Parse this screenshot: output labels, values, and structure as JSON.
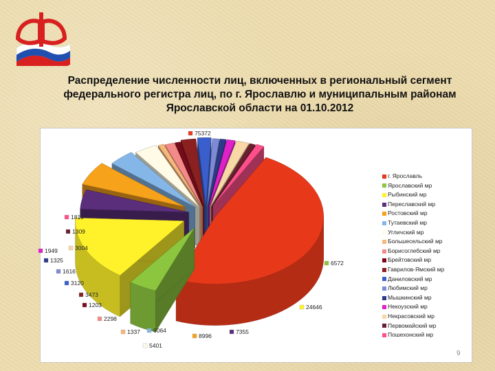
{
  "title": "Распределение численности лиц, включенных в региональный сегмент федерального регистра лиц, по г. Ярославлю и муниципальным районам Ярославской области на 01.10.2012",
  "page_number": "9",
  "logo": {
    "icon": "pfr-logo-icon",
    "flag_colors": [
      "#ffffff",
      "#1f4fb0",
      "#d7201f"
    ],
    "accent": "#d7201f"
  },
  "chart_data": {
    "type": "pie",
    "style": "3d-exploded",
    "legend_position": "right",
    "categories": [
      "г. Ярославль",
      "Ярославский мр",
      "Рыбинский мр",
      "Переславский мр",
      "Ростовский мр",
      "Тутаевский мр",
      "Угличский мр",
      "Большесельский мр",
      "Борисоглебский мр",
      "Брейтовский мр",
      "Гаврилов-Ямский мр",
      "Даниловский мр",
      "Любимский мр",
      "Мышкинский мр",
      "Некоузский мр",
      "Некрасовский мр",
      "Первомайский мр",
      "Пошехонский мр"
    ],
    "values": [
      75372,
      6572,
      24646,
      7355,
      8996,
      6064,
      5401,
      1337,
      2298,
      1203,
      3473,
      3120,
      1616,
      1325,
      1949,
      3004,
      1309,
      1819
    ],
    "colors": [
      "#e8381a",
      "#8cc63f",
      "#fff22a",
      "#5a2e7a",
      "#f7a21b",
      "#84b7e8",
      "#fffbe6",
      "#f5b77a",
      "#f28a88",
      "#7a0a1a",
      "#8a2020",
      "#3a5fcd",
      "#7d8ad6",
      "#2c3a8a",
      "#e020c8",
      "#f8d8a6",
      "#6a1f2f",
      "#ff4f8b"
    ],
    "data_labels": [
      "75372",
      "6572",
      "24646",
      "7355",
      "8996",
      "6064",
      "5401",
      "1337",
      "2298",
      "1203",
      "3473",
      "3120",
      "1616",
      "1325",
      "1949",
      "3004",
      "1309",
      "1819"
    ]
  }
}
